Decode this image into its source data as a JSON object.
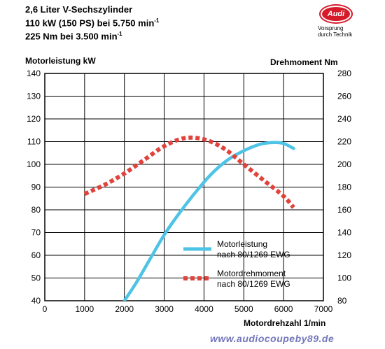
{
  "header": {
    "line1": "2,6 Liter V-Sechszylinder",
    "line2": "110 kW (150 PS) bei 5.750 min",
    "line2_sup": "-1",
    "line3": "225 Nm bei 3.500 min",
    "line3_sup": "-1"
  },
  "logo": {
    "brand": "Audi",
    "slogan_line1": "Vorsprung",
    "slogan_line2": "durch Technik"
  },
  "watermark": "www.audiocoupeby89.de",
  "chart_data": {
    "type": "line",
    "xlabel": "Motordrehzahl 1/min",
    "ylabel_left": "Motorleistung kW",
    "ylabel_right": "Drehmoment Nm",
    "xlim": [
      0,
      7000
    ],
    "ylim_left": [
      40,
      140
    ],
    "ylim_right": [
      80,
      280
    ],
    "x_ticks": [
      "0",
      "1000",
      "2000",
      "3000",
      "4000",
      "5000",
      "6000",
      "7000"
    ],
    "y_ticks_left": [
      "40",
      "50",
      "60",
      "70",
      "80",
      "90",
      "100",
      "110",
      "120",
      "130",
      "140"
    ],
    "y_ticks_right": [
      "80",
      "100",
      "120",
      "140",
      "160",
      "180",
      "200",
      "220",
      "240",
      "260",
      "280"
    ],
    "grid": true,
    "legend_position": "bottom-right",
    "series": [
      {
        "name": "Motorleistung\nnach 80/1269 EWG",
        "legend_line1": "Motorleistung",
        "legend_line2": "nach 80/1269 EWG",
        "axis": "left",
        "color": "#4dc3e6",
        "style": "solid",
        "x": [
          2000,
          2300,
          2600,
          3000,
          3400,
          3800,
          4200,
          4600,
          5000,
          5400,
          5750,
          6000,
          6250
        ],
        "y": [
          40,
          48,
          57,
          69,
          79,
          88,
          96,
          102,
          106,
          108.8,
          109.6,
          109.2,
          107
        ]
      },
      {
        "name": "Motordrehmoment\nnach 80/1269 EWG",
        "legend_line1": "Motordrehmoment",
        "legend_line2": "nach 80/1269 EWG",
        "axis": "right",
        "color": "#e0433b",
        "style": "dashed",
        "x": [
          1000,
          1500,
          2000,
          2500,
          3000,
          3500,
          4000,
          4500,
          5000,
          5500,
          6000,
          6250
        ],
        "y": [
          174,
          182,
          192,
          204,
          216,
          223,
          222,
          214,
          200,
          186,
          172,
          162
        ]
      }
    ]
  }
}
